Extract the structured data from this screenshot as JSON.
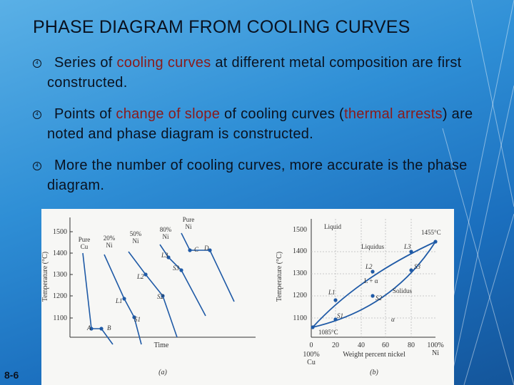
{
  "slide": {
    "title": "PHASE DIAGRAM FROM COOLING CURVES",
    "slide_number": "8-6"
  },
  "bullets": [
    {
      "bullet_glyph": "4",
      "parts": [
        {
          "text": "Series of ",
          "highlight": false
        },
        {
          "text": "cooling curves",
          "highlight": true
        },
        {
          "text": " at different metal composition are first constructed.",
          "highlight": false
        }
      ]
    },
    {
      "bullet_glyph": "4",
      "parts": [
        {
          "text": "Points of ",
          "highlight": false
        },
        {
          "text": "change of slope",
          "highlight": true
        },
        {
          "text": " of cooling curves (",
          "highlight": false
        },
        {
          "text": "thermal arrests",
          "highlight": true
        },
        {
          "text": ") are noted and phase diagram is constructed.",
          "highlight": false
        }
      ]
    },
    {
      "bullet_glyph": "4",
      "parts": [
        {
          "text": "More the number of cooling curves, more accurate is the phase diagram.",
          "highlight": false
        }
      ]
    }
  ],
  "colors": {
    "highlight": "#8a1a1a",
    "text": "#0a1220",
    "figure_curve": "#1f5aa6"
  },
  "figure": {
    "panel_a": {
      "ylabel": "Temperature (°C)",
      "yticks": [
        "1500",
        "1400",
        "1300",
        "1200",
        "1100"
      ],
      "xlabel": "Time",
      "caption": "(a)",
      "curve_labels": [
        {
          "l1": "Pure",
          "l2": "Cu"
        },
        {
          "l1": "20%",
          "l2": "Ni"
        },
        {
          "l1": "50%",
          "l2": "Ni"
        },
        {
          "l1": "80%",
          "l2": "Ni"
        },
        {
          "l1": "Pure",
          "l2": "Ni"
        }
      ],
      "point_labels": [
        "A",
        "B",
        "C",
        "D",
        "L1",
        "S1",
        "L2",
        "S2",
        "L3",
        "S3"
      ]
    },
    "panel_b": {
      "ylabel": "Temperature (°C)",
      "yticks": [
        "1500",
        "1400",
        "1300",
        "1200",
        "1100"
      ],
      "xticks": [
        "0",
        "20",
        "40",
        "60",
        "80",
        "100%"
      ],
      "x_end_label": "Ni",
      "x_start_label_1": "100%",
      "x_start_label_2": "Cu",
      "xlabel": "Weight percent nickel",
      "caption": "(b)",
      "region_labels": {
        "liquid": "Liquid",
        "liquidus": "Liquidus",
        "solidus": "Solidus",
        "alpha": "α",
        "l_plus_alpha": "L + α"
      },
      "annotations": {
        "top_temp": "1455°C",
        "bottom_temp": "1085°C"
      },
      "point_labels": [
        "L1",
        "L2",
        "L3",
        "S1",
        "S2",
        "S3"
      ]
    }
  }
}
